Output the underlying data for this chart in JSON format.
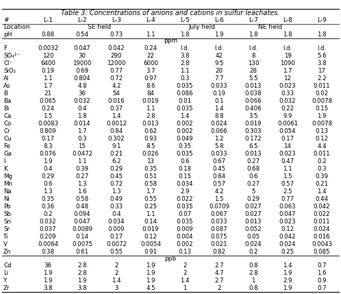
{
  "title": "Table 3: Concentrations of anions and cations in sulfur leachates.",
  "columns": [
    "#",
    "L-1",
    "L-2",
    "L-3",
    "L-4",
    "L-5",
    "L-6",
    "L-7",
    "L-8",
    "L-9"
  ],
  "header_rows": [
    [
      "Location",
      "SE field",
      "",
      "",
      "",
      "July field",
      "",
      "",
      "NE field",
      ""
    ],
    [
      "pH",
      "0.88",
      "0.54",
      "0.73",
      "1.1",
      "1.8",
      "1.9",
      "1.8",
      "1.8",
      "1.8"
    ]
  ],
  "ppm_label": "ppm",
  "ppb_label": "ppb",
  "ppm_rows": [
    [
      "F",
      "0.0032",
      "0.047",
      "0.042",
      "0.24",
      "l.d.",
      "l.d.",
      "l.d.",
      "l.d.",
      "l.d."
    ],
    [
      "SO₄²⁻",
      "120",
      "30",
      "290",
      "22",
      "3.8",
      "42",
      "8",
      "19",
      "5.6"
    ],
    [
      "Cl⁻",
      "6400",
      "19000",
      "12000",
      "6000",
      "2.8",
      "9.5",
      "130",
      "1090",
      "3.8"
    ],
    [
      "SiO₂",
      "0.19",
      "0.69",
      "0.77",
      "3.7",
      "1.1",
      "20",
      "28",
      "1.7",
      "17"
    ],
    [
      "Al",
      "1.1",
      "0.804",
      "0.72",
      "0.97",
      "0.3",
      "7.7",
      "5.5",
      "12",
      "2.2"
    ],
    [
      "As",
      "1.7",
      "4.8",
      "4.2",
      "8.6",
      "0.035",
      "0.033",
      "0.013",
      "0.023",
      "0.011"
    ],
    [
      "B",
      "21",
      "36",
      "54",
      "84",
      "0.086",
      "0.19",
      "0.038",
      "0.33",
      "0.02"
    ],
    [
      "Ba",
      "0.065",
      "0.032",
      "0.016",
      "0.019",
      "0.01",
      "0.1",
      "0.066",
      "0.032",
      "0.0078"
    ],
    [
      "Bi",
      "0.24",
      "0.4",
      "0.37",
      "1.1",
      "0.035",
      "1.4",
      "0.406",
      "0.22",
      "0.15"
    ],
    [
      "Ca",
      "1.5",
      "1.8",
      "1.4",
      "2.8",
      "1.4",
      "8.8",
      "3.5",
      "9.9",
      "1.9"
    ],
    [
      "Co",
      "0.0083",
      "0.014",
      "0.0012",
      "0.013",
      "0.002",
      "0.024",
      "0.019",
      "0.0061",
      "0.0078"
    ],
    [
      "Cr",
      "0.809",
      "1.7",
      "0.84",
      "0.62",
      "0.002",
      "0.066",
      "0.303",
      "0.054",
      "0.13"
    ],
    [
      "Cu",
      "0.17",
      "0.3",
      "0.302",
      "0.93",
      "0.049",
      "1.2",
      "0.172",
      "0.17",
      "0.12"
    ],
    [
      "Fe",
      "8.3",
      "15",
      "9.1",
      "8.5",
      "0.35",
      "5.8",
      "6.5",
      "14",
      "4.4"
    ],
    [
      "Ga",
      "0.076",
      "0.0472",
      "0.21",
      "0.026",
      "0.035",
      "0.033",
      "0.013",
      "0.023",
      "0.011"
    ],
    [
      "I",
      "1.9",
      "1.1",
      "6.2",
      "13",
      "0.6",
      "0.67",
      "0.27",
      "0.47",
      "0.2"
    ],
    [
      "K",
      "0.4",
      "0.39",
      "0.29",
      "0.35",
      "0.18",
      "0.45",
      "0.68",
      "1.1",
      "0.3"
    ],
    [
      "Mg",
      "0.29",
      "0.27",
      "0.45",
      "0.51",
      "0.15",
      "0.84",
      "0.6",
      "1.5",
      "0.39"
    ],
    [
      "Mn",
      "0.6",
      "1.3",
      "0.72",
      "0.58",
      "0.034",
      "0.57",
      "0.27",
      "0.57",
      "0.21"
    ],
    [
      "Na",
      "1.3",
      "1.6",
      "1.3",
      "1.7",
      "2.9",
      "4.2",
      "5",
      "2.5",
      "1.4"
    ],
    [
      "Ni",
      "0.35",
      "0.58",
      "0.49",
      "0.55",
      "0.022",
      "1.5",
      "0.29",
      "0.77",
      "0.44"
    ],
    [
      "Pb",
      "0.36",
      "0.48",
      "0.33",
      "0.25",
      "0.035",
      "0.0709",
      "0.027",
      "0.063",
      "0.042"
    ],
    [
      "Sb",
      "0.2",
      "0.094",
      "0.4",
      "1.1",
      "0.07",
      "0.067",
      "0.027",
      "0.047",
      "0.022"
    ],
    [
      "Sn",
      "0.032",
      "0.047",
      "0.034",
      "0.14",
      "0.035",
      "0.033",
      "0.013",
      "0.023",
      "0.011"
    ],
    [
      "Sr",
      "0.037",
      "0.0089",
      "0.009",
      "0.019",
      "0.009",
      "0.087",
      "0.052",
      "0.12",
      "0.024"
    ],
    [
      "Ti",
      "0.209",
      "0.14",
      "0.17",
      "0.12",
      "0.004",
      "0.075",
      "0.05",
      "0.042",
      "0.016"
    ],
    [
      "V",
      "0.0064",
      "0.0075",
      "0.0072",
      "0.0054",
      "0.002",
      "0.021",
      "0.024",
      "0.024",
      "0.0043"
    ],
    [
      "Zn",
      "0.38",
      "0.61",
      "0.55",
      "0.91",
      "0.13",
      "0.82",
      "0.2",
      "0.25",
      "0.085"
    ]
  ],
  "ppb_rows": [
    [
      "Cd",
      "36",
      "2.8",
      "2",
      "1.9",
      "2",
      "2.7",
      "0.8",
      "1.4",
      "0.7"
    ],
    [
      "Li",
      "1.9",
      "2.8",
      "2",
      "1.9",
      "2",
      "4.7",
      "2.8",
      "1.9",
      "1.6"
    ],
    [
      "Y",
      "1.9",
      "1.9",
      "1.4",
      "1.9",
      "1.4",
      "2.7",
      "1",
      "2.9",
      "0.9"
    ],
    [
      "Zr",
      "3.8",
      "3.8",
      "3",
      "4.5",
      "1",
      "2",
      "0.8",
      "1.9",
      "0.7"
    ]
  ],
  "bg_color": "#ffffff",
  "text_color": "#000000",
  "font_size": 6.2,
  "header_font_size": 6.5,
  "title_font_size": 7.0
}
